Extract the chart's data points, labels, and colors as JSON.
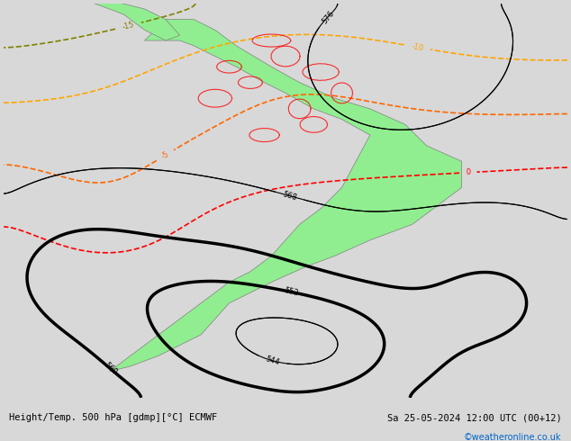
{
  "title_left": "Height/Temp. 500 hPa [gdmp][°C] ECMWF",
  "title_right": "Sa 25-05-2024 12:00 UTC (00+12)",
  "copyright": "©weatheronline.co.uk",
  "background_color": "#d8d8d8",
  "land_color": "#90EE90",
  "sea_color": "#d8d8d8",
  "fig_width": 6.34,
  "fig_height": 4.9,
  "dpi": 100
}
